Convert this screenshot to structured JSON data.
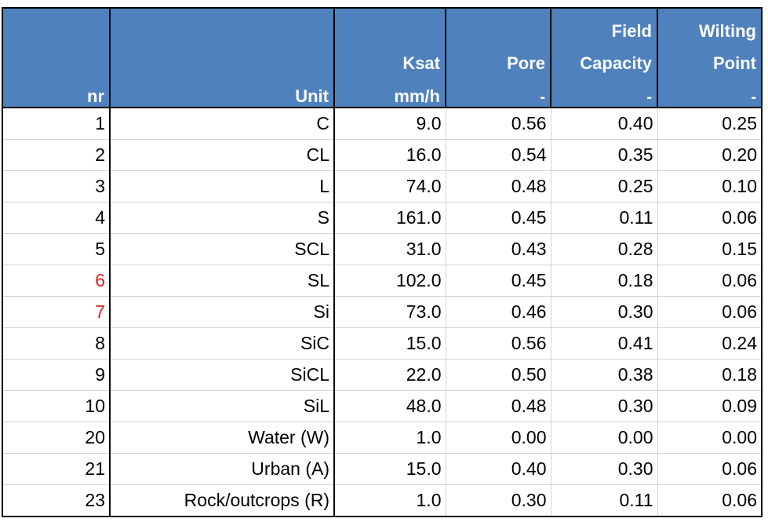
{
  "header": {
    "row1": [
      "",
      "",
      "",
      "",
      "Field",
      "Wilting"
    ],
    "row2": [
      "",
      "",
      "Ksat",
      "Pore",
      "Capacity",
      "Point"
    ],
    "row3": [
      "nr",
      "Unit",
      "mm/h",
      "-",
      "-",
      "-"
    ]
  },
  "highlight_color": "#e02020",
  "header_color": "#4f81bd",
  "rows": [
    {
      "nr": "1",
      "unit": "C",
      "ksat": "9.0",
      "pore": "0.56",
      "fc": "0.40",
      "wp": "0.25",
      "red": false
    },
    {
      "nr": "2",
      "unit": "CL",
      "ksat": "16.0",
      "pore": "0.54",
      "fc": "0.35",
      "wp": "0.20",
      "red": false
    },
    {
      "nr": "3",
      "unit": "L",
      "ksat": "74.0",
      "pore": "0.48",
      "fc": "0.25",
      "wp": "0.10",
      "red": false
    },
    {
      "nr": "4",
      "unit": "S",
      "ksat": "161.0",
      "pore": "0.45",
      "fc": "0.11",
      "wp": "0.06",
      "red": false
    },
    {
      "nr": "5",
      "unit": "SCL",
      "ksat": "31.0",
      "pore": "0.43",
      "fc": "0.28",
      "wp": "0.15",
      "red": false
    },
    {
      "nr": "6",
      "unit": "SL",
      "ksat": "102.0",
      "pore": "0.45",
      "fc": "0.18",
      "wp": "0.06",
      "red": true
    },
    {
      "nr": "7",
      "unit": "Si",
      "ksat": "73.0",
      "pore": "0.46",
      "fc": "0.30",
      "wp": "0.06",
      "red": true
    },
    {
      "nr": "8",
      "unit": "SiC",
      "ksat": "15.0",
      "pore": "0.56",
      "fc": "0.41",
      "wp": "0.24",
      "red": false
    },
    {
      "nr": "9",
      "unit": "SiCL",
      "ksat": "22.0",
      "pore": "0.50",
      "fc": "0.38",
      "wp": "0.18",
      "red": false
    },
    {
      "nr": "10",
      "unit": "SiL",
      "ksat": "48.0",
      "pore": "0.48",
      "fc": "0.30",
      "wp": "0.09",
      "red": false
    },
    {
      "nr": "20",
      "unit": "Water (W)",
      "ksat": "1.0",
      "pore": "0.00",
      "fc": "0.00",
      "wp": "0.00",
      "red": false
    },
    {
      "nr": "21",
      "unit": "Urban (A)",
      "ksat": "15.0",
      "pore": "0.40",
      "fc": "0.30",
      "wp": "0.06",
      "red": false
    },
    {
      "nr": "23",
      "unit": "Rock/outcrops (R)",
      "ksat": "1.0",
      "pore": "0.30",
      "fc": "0.11",
      "wp": "0.06",
      "red": false
    }
  ]
}
